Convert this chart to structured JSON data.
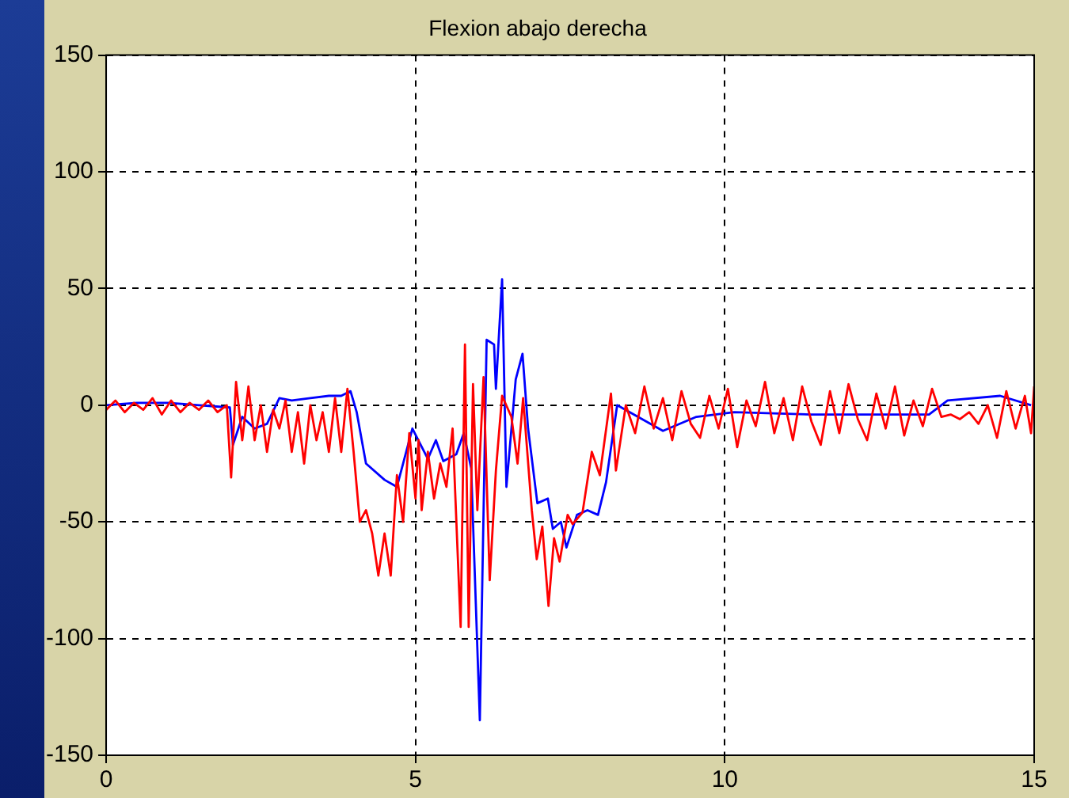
{
  "chart_data": {
    "type": "line",
    "title": "Flexion abajo derecha",
    "xlim": [
      0,
      15
    ],
    "xticks": [
      0,
      5,
      10,
      15
    ],
    "ylim": [
      -150,
      150
    ],
    "yticks": [
      -150,
      -100,
      -50,
      0,
      50,
      100,
      150
    ],
    "grid": true,
    "legend": false,
    "marker": "none",
    "line_style": "solid",
    "series": [
      {
        "color": "#ff0000",
        "x": [
          0,
          0.15,
          0.3,
          0.45,
          0.6,
          0.75,
          0.9,
          1.05,
          1.2,
          1.35,
          1.5,
          1.65,
          1.8,
          1.95,
          2.02,
          2.1,
          2.2,
          2.3,
          2.4,
          2.5,
          2.6,
          2.7,
          2.8,
          2.9,
          3.0,
          3.1,
          3.2,
          3.3,
          3.4,
          3.5,
          3.6,
          3.7,
          3.8,
          3.9,
          4.0,
          4.1,
          4.2,
          4.3,
          4.4,
          4.5,
          4.6,
          4.7,
          4.8,
          4.9,
          5.0,
          5.05,
          5.1,
          5.2,
          5.3,
          5.4,
          5.5,
          5.6,
          5.73,
          5.8,
          5.86,
          5.93,
          6.0,
          6.1,
          6.2,
          6.3,
          6.4,
          6.55,
          6.65,
          6.74,
          6.88,
          6.96,
          7.05,
          7.15,
          7.24,
          7.33,
          7.46,
          7.54,
          7.7,
          7.85,
          7.98,
          8.16,
          8.24,
          8.4,
          8.55,
          8.7,
          8.85,
          9.0,
          9.15,
          9.3,
          9.45,
          9.6,
          9.75,
          9.9,
          10.05,
          10.2,
          10.35,
          10.5,
          10.65,
          10.8,
          10.95,
          11.1,
          11.25,
          11.4,
          11.55,
          11.7,
          11.85,
          12.0,
          12.15,
          12.3,
          12.45,
          12.6,
          12.75,
          12.9,
          13.05,
          13.2,
          13.35,
          13.5,
          13.65,
          13.8,
          13.95,
          14.1,
          14.25,
          14.4,
          14.55,
          14.7,
          14.85,
          14.95,
          15
        ],
        "values": [
          -2,
          2,
          -3,
          1,
          -2,
          3,
          -4,
          2,
          -3,
          1,
          -2,
          2,
          -3,
          0,
          -31,
          10,
          -15,
          8,
          -15,
          0,
          -20,
          -2,
          -10,
          2,
          -20,
          -3,
          -25,
          0,
          -15,
          -3,
          -20,
          3,
          -20,
          7,
          -20,
          -50,
          -45,
          -55,
          -73,
          -55,
          -73,
          -30,
          -50,
          -12,
          -40,
          -15,
          -45,
          -20,
          -40,
          -25,
          -35,
          -10,
          -95,
          26,
          -95,
          9,
          -45,
          12,
          -75,
          -28,
          4,
          -5,
          -25,
          3,
          -45,
          -66,
          -52,
          -86,
          -57,
          -67,
          -47,
          -51,
          -46,
          -20,
          -30,
          5,
          -28,
          0,
          -12,
          8,
          -10,
          3,
          -15,
          6,
          -8,
          -14,
          4,
          -10,
          7,
          -18,
          2,
          -9,
          10,
          -12,
          3,
          -15,
          8,
          -7,
          -17,
          6,
          -12,
          9,
          -6,
          -15,
          5,
          -10,
          8,
          -13,
          2,
          -9,
          7,
          -5,
          -4,
          -6,
          -3,
          -8,
          0,
          -14,
          6,
          -10,
          4,
          -12,
          8
        ]
      },
      {
        "color": "#0000ff",
        "x": [
          0,
          0.5,
          1,
          1.5,
          2,
          2.05,
          2.2,
          2.4,
          2.6,
          2.8,
          3.0,
          3.3,
          3.6,
          3.8,
          3.95,
          4.05,
          4.2,
          4.5,
          4.7,
          4.95,
          5.2,
          5.33,
          5.45,
          5.66,
          5.78,
          5.9,
          6.04,
          6.15,
          6.27,
          6.3,
          6.4,
          6.47,
          6.62,
          6.73,
          6.82,
          6.97,
          7.14,
          7.22,
          7.35,
          7.44,
          7.61,
          7.78,
          7.95,
          8.08,
          8.26,
          9.0,
          9.54,
          10.15,
          11.4,
          12.7,
          13.3,
          13.6,
          14.45,
          14.95
        ],
        "values": [
          0,
          1,
          1,
          0,
          -1,
          -17,
          -5,
          -10,
          -8,
          3,
          2,
          3,
          4,
          4,
          6,
          -3,
          -25,
          -32,
          -35,
          -10,
          -23,
          -15,
          -24,
          -21,
          -12,
          -27,
          -135,
          28,
          26,
          7,
          54,
          -35,
          11,
          22,
          -10,
          -42,
          -40,
          -53,
          -50,
          -61,
          -47,
          -45,
          -47,
          -33,
          0,
          -11,
          -5,
          -3,
          -4,
          -4,
          -4,
          2,
          4,
          0
        ]
      }
    ]
  }
}
